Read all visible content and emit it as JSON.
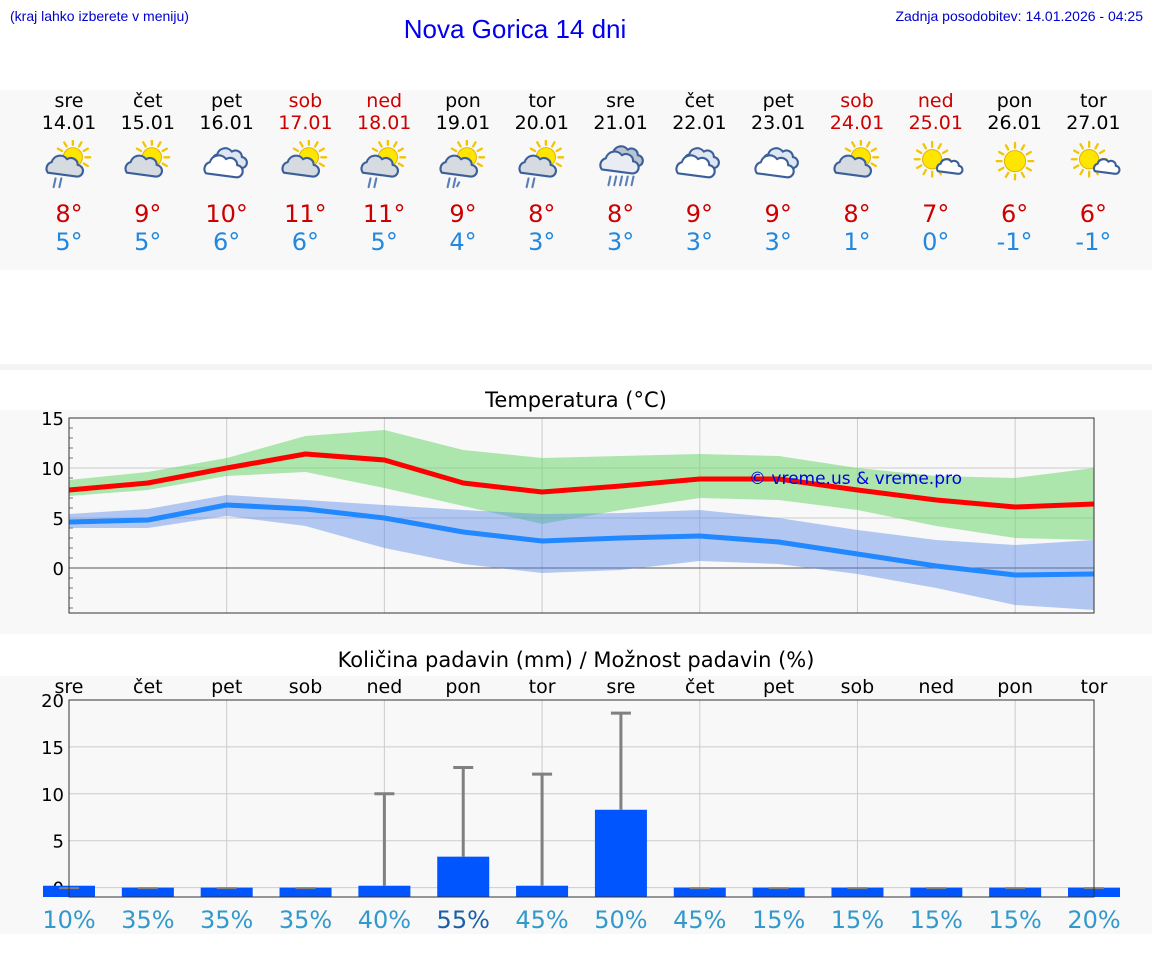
{
  "header": {
    "hint": "(kraj lahko izberete v meniju)",
    "title": "Nova Gorica 14 dni",
    "updated": "Zadnja posodobitev: 14.01.2026 - 04:25"
  },
  "colors": {
    "max": "#cc0000",
    "min": "#2288dd",
    "weekend": "#cc0000",
    "bar": "#0055ff",
    "chance": "#3399cc",
    "chance_dark": "#1a5fa8"
  },
  "days": [
    {
      "name": "sre",
      "date": "14.01",
      "weekend": false,
      "icon": "sun-cloud-light-rain-icon",
      "max": "8°",
      "min": "5°"
    },
    {
      "name": "čet",
      "date": "15.01",
      "weekend": false,
      "icon": "sun-cloud-icon",
      "max": "9°",
      "min": "5°"
    },
    {
      "name": "pet",
      "date": "16.01",
      "weekend": false,
      "icon": "cloudy-icon",
      "max": "10°",
      "min": "6°"
    },
    {
      "name": "sob",
      "date": "17.01",
      "weekend": true,
      "icon": "sun-cloud-icon",
      "max": "11°",
      "min": "6°"
    },
    {
      "name": "ned",
      "date": "18.01",
      "weekend": true,
      "icon": "sun-cloud-light-rain-icon",
      "max": "11°",
      "min": "5°"
    },
    {
      "name": "pon",
      "date": "19.01",
      "weekend": false,
      "icon": "sun-cloud-drizzle-icon",
      "max": "9°",
      "min": "4°"
    },
    {
      "name": "tor",
      "date": "20.01",
      "weekend": false,
      "icon": "sun-cloud-light-rain-icon",
      "max": "8°",
      "min": "3°"
    },
    {
      "name": "sre",
      "date": "21.01",
      "weekend": false,
      "icon": "cloud-rain-icon",
      "max": "8°",
      "min": "3°"
    },
    {
      "name": "čet",
      "date": "22.01",
      "weekend": false,
      "icon": "cloudy-icon",
      "max": "9°",
      "min": "3°"
    },
    {
      "name": "pet",
      "date": "23.01",
      "weekend": false,
      "icon": "cloudy-icon",
      "max": "9°",
      "min": "3°"
    },
    {
      "name": "sob",
      "date": "24.01",
      "weekend": true,
      "icon": "sun-cloud-icon",
      "max": "8°",
      "min": "1°"
    },
    {
      "name": "ned",
      "date": "25.01",
      "weekend": true,
      "icon": "sun-small-cloud-icon",
      "max": "7°",
      "min": "0°"
    },
    {
      "name": "pon",
      "date": "26.01",
      "weekend": false,
      "icon": "sun-icon",
      "max": "6°",
      "min": "-1°"
    },
    {
      "name": "tor",
      "date": "27.01",
      "weekend": false,
      "icon": "sun-small-cloud-icon",
      "max": "6°",
      "min": "-1°"
    }
  ],
  "chart_data": [
    {
      "type": "line",
      "title": "Temperatura (°C)",
      "ylim": [
        -4.5,
        15
      ],
      "yticks": [
        "15",
        "10",
        "5",
        "0"
      ],
      "ytick_values": [
        15,
        10,
        5,
        0
      ],
      "watermark": "© vreme.us & vreme.pro",
      "x": [
        0,
        1,
        2,
        3,
        4,
        5,
        6,
        7,
        8,
        9,
        10,
        11,
        12,
        13
      ],
      "series": [
        {
          "name": "max",
          "values": [
            7.8,
            8.5,
            10.0,
            11.4,
            10.8,
            8.5,
            7.6,
            8.2,
            8.9,
            8.9,
            7.8,
            6.8,
            6.1,
            6.4
          ],
          "band_low": [
            7.2,
            7.8,
            9.2,
            9.6,
            8.0,
            6.2,
            4.4,
            5.8,
            7.0,
            6.8,
            5.8,
            4.2,
            3.0,
            2.8
          ],
          "band_high": [
            8.8,
            9.6,
            11.0,
            13.2,
            13.8,
            11.8,
            11.0,
            11.2,
            11.4,
            11.2,
            10.0,
            9.2,
            9.0,
            10.0
          ]
        },
        {
          "name": "min",
          "values": [
            4.6,
            4.8,
            6.3,
            5.9,
            5.0,
            3.6,
            2.7,
            3.0,
            3.2,
            2.6,
            1.4,
            0.2,
            -0.7,
            -0.6
          ],
          "band_low": [
            4.0,
            4.0,
            5.2,
            4.2,
            2.0,
            0.4,
            -0.5,
            -0.2,
            0.7,
            0.4,
            -0.6,
            -2.0,
            -3.7,
            -4.2
          ],
          "band_high": [
            5.4,
            5.9,
            7.3,
            6.8,
            6.3,
            5.8,
            5.4,
            5.5,
            5.8,
            5.0,
            3.8,
            2.8,
            2.3,
            2.8
          ]
        }
      ]
    },
    {
      "type": "bar",
      "title": "Količina padavin (mm) / Možnost padavin (%)",
      "ylim": [
        -1,
        20
      ],
      "yticks": [
        "20",
        "15",
        "10",
        "5",
        "0"
      ],
      "ytick_values": [
        20,
        15,
        10,
        5,
        0
      ],
      "categories": [
        "sre",
        "čet",
        "pet",
        "sob",
        "ned",
        "pon",
        "tor",
        "sre",
        "čet",
        "pet",
        "sob",
        "ned",
        "pon",
        "tor"
      ],
      "values": [
        0.2,
        0,
        0,
        0,
        0.2,
        3.3,
        0.2,
        8.3,
        0,
        0,
        0,
        0,
        0,
        0
      ],
      "error_high": [
        0.2,
        0,
        0,
        0,
        10.0,
        12.8,
        12.1,
        18.6,
        0,
        0,
        0,
        0,
        0,
        0
      ],
      "chance": [
        "10%",
        "35%",
        "35%",
        "35%",
        "40%",
        "55%",
        "45%",
        "50%",
        "45%",
        "15%",
        "15%",
        "15%",
        "15%",
        "20%"
      ],
      "chance_highlight": [
        false,
        false,
        false,
        false,
        false,
        true,
        false,
        false,
        false,
        false,
        false,
        false,
        false,
        false
      ]
    }
  ]
}
